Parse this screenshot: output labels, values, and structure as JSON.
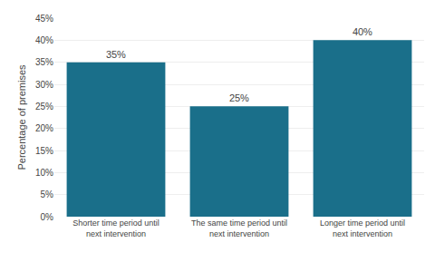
{
  "chart_data": {
    "type": "bar",
    "categories": [
      "Shorter time period until\nnext intervention",
      "The same time period until\nnext intervention",
      "Longer time period until\nnext intervention"
    ],
    "values": [
      35,
      25,
      40
    ],
    "value_labels": [
      "35%",
      "25%",
      "40%"
    ],
    "data_labels": true,
    "color": "#1a6f8a",
    "ylabel": "Percentage of premises",
    "ylim": [
      0,
      45
    ],
    "yticks": [
      {
        "value": 0,
        "label": "0%"
      },
      {
        "value": 5,
        "label": "5%"
      },
      {
        "value": 10,
        "label": "10%"
      },
      {
        "value": 15,
        "label": "15%"
      },
      {
        "value": 20,
        "label": "20%"
      },
      {
        "value": 25,
        "label": "25%"
      },
      {
        "value": 30,
        "label": "30%"
      },
      {
        "value": 35,
        "label": "35%"
      },
      {
        "value": 40,
        "label": "40%"
      },
      {
        "value": 45,
        "label": "45%"
      }
    ],
    "grid": true
  }
}
